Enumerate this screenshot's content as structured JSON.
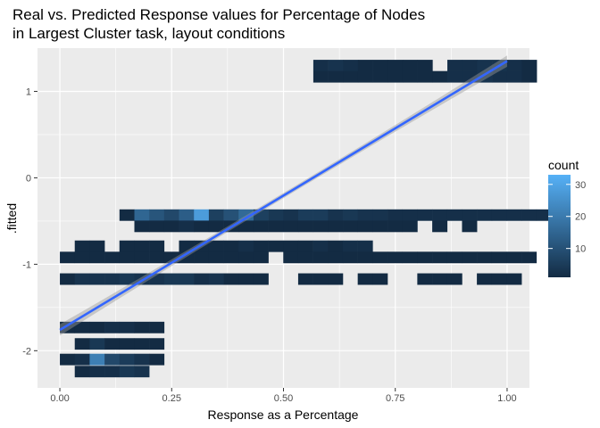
{
  "chart_data": {
    "type": "heatmap",
    "title_lines": [
      "Real vs. Predicted Response values for Percentage of Nodes",
      "in Largest Cluster task, layout conditions"
    ],
    "xlabel": "Response as a Percentage",
    "ylabel": ".fitted",
    "xlim": [
      -0.05,
      1.05
    ],
    "ylim": [
      -2.43,
      1.5
    ],
    "x_ticks": [
      {
        "value": 0,
        "label": "0.00"
      },
      {
        "value": 0.25,
        "label": "0.25"
      },
      {
        "value": 0.5,
        "label": "0.50"
      },
      {
        "value": 0.75,
        "label": "0.75"
      },
      {
        "value": 1,
        "label": "1.00"
      }
    ],
    "y_ticks": [
      {
        "value": 1,
        "label": "1"
      },
      {
        "value": 0,
        "label": "0"
      },
      {
        "value": -1,
        "label": "-1"
      },
      {
        "value": -2,
        "label": "-2"
      }
    ],
    "bin_width": 0.0333,
    "bin_height": 0.13,
    "bins": [
      {
        "x0": 0.5667,
        "y": 1.3,
        "counts": [
          2,
          3,
          2,
          1,
          1,
          1,
          1,
          1,
          0,
          2,
          2,
          3,
          3,
          2,
          1
        ]
      },
      {
        "x0": 0.5667,
        "y": 1.17,
        "counts": [
          1,
          1,
          1,
          1,
          1,
          1,
          1,
          1,
          1,
          2,
          2,
          3,
          2,
          2,
          1
        ]
      },
      {
        "x0": 0.1333,
        "y": -0.43,
        "counts": [
          1,
          15,
          11,
          8,
          13,
          28,
          6,
          10,
          16,
          6,
          4,
          3,
          5,
          5,
          3,
          4,
          3,
          3,
          2,
          2,
          2,
          2,
          2,
          2,
          2,
          2,
          2,
          2,
          2,
          2
        ]
      },
      {
        "x0": 0.1333,
        "y": -0.56,
        "counts": [
          0,
          1,
          1,
          1,
          2,
          1,
          1,
          1,
          1,
          1,
          1,
          1,
          1,
          1,
          1,
          1,
          1,
          1,
          1,
          1,
          0,
          1,
          0,
          1,
          0,
          0,
          0,
          0,
          0,
          1
        ]
      },
      {
        "x0": 0.0333,
        "y": -0.79,
        "counts": [
          1,
          1,
          0,
          1,
          1,
          1,
          0,
          1,
          1,
          1,
          1,
          2,
          1,
          1,
          1,
          1,
          2,
          1,
          2,
          2
        ]
      },
      {
        "x0": 0.0,
        "y": -0.92,
        "counts": [
          1,
          1,
          1,
          1,
          1,
          1,
          1,
          1,
          1,
          1,
          1,
          1,
          1,
          1,
          0,
          1,
          1,
          1,
          1,
          1,
          1,
          1,
          1,
          1,
          1,
          1,
          1,
          1,
          1,
          1,
          1,
          1
        ]
      },
      {
        "x0": 0.0,
        "y": -1.17,
        "counts": [
          1,
          3,
          3,
          3,
          4,
          3,
          3,
          4,
          4,
          2,
          3,
          1,
          1,
          1,
          0,
          0,
          1,
          1,
          1,
          0,
          1,
          1,
          0,
          0,
          1,
          1,
          1,
          0,
          1,
          1,
          1
        ]
      },
      {
        "x0": 0.0,
        "y": -1.73,
        "counts": [
          1,
          1,
          1,
          2,
          2,
          1,
          1
        ]
      },
      {
        "x0": 0.0333,
        "y": -1.92,
        "counts": [
          1,
          4,
          1,
          1,
          1,
          1
        ]
      },
      {
        "x0": 0.0,
        "y": -2.1,
        "counts": [
          1,
          2,
          21,
          8,
          5,
          3,
          1
        ]
      },
      {
        "x0": 0.0333,
        "y": -2.24,
        "counts": [
          1,
          2,
          2,
          4,
          3
        ]
      }
    ],
    "fit_line": {
      "x": [
        0,
        1
      ],
      "y": [
        -1.76,
        1.35
      ]
    },
    "fit_band_halfwidth": {
      "ends": 0.065,
      "center": 0.03
    },
    "legend": {
      "title": "count",
      "position": "right",
      "ticks": [
        {
          "value": 10,
          "label": "10"
        },
        {
          "value": 20,
          "label": "20"
        },
        {
          "value": 30,
          "label": "30"
        }
      ],
      "range": [
        1,
        33
      ]
    },
    "colors": {
      "low": "#132B43",
      "high": "#56B1F7",
      "panel": "#EBEBEB",
      "grid_major": "#FFFFFF",
      "fit_line": "#3366FF",
      "fit_band": "#999999"
    }
  }
}
